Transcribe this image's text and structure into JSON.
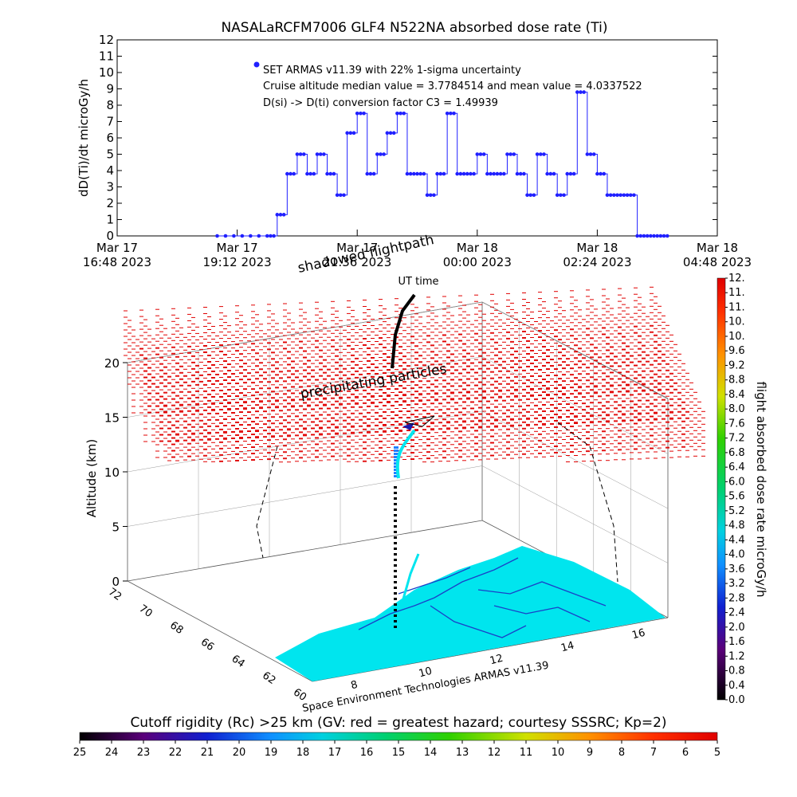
{
  "title": "NASALaRCFM7006  GLF4 N522NA absorbed dose rate (Ti)",
  "top_chart": {
    "ylabel": "dD(Ti)/dt microGy/h",
    "xlabel": "UT time",
    "y_ticks": [
      "0",
      "1",
      "2",
      "3",
      "4",
      "5",
      "6",
      "7",
      "8",
      "9",
      "10",
      "11",
      "12"
    ],
    "x_ticks": [
      {
        "line1": "Mar 17",
        "line2": "16:48 2023"
      },
      {
        "line1": "Mar 17",
        "line2": "19:12 2023"
      },
      {
        "line1": "Mar 17",
        "line2": "21:36 2023"
      },
      {
        "line1": "Mar 18",
        "line2": "00:00 2023"
      },
      {
        "line1": "Mar 18",
        "line2": "02:24 2023"
      },
      {
        "line1": "Mar 18",
        "line2": "04:48 2023"
      }
    ],
    "legend": [
      "SET ARMAS v11.39 with 22% 1-sigma uncertainty",
      "Cruise altitude median value = 3.7784514 and mean value = 4.0337522",
      "D(si) -> D(ti) conversion factor C3 = 1.49939"
    ]
  },
  "chart_data": [
    {
      "type": "line",
      "title": "NASALaRCFM7006  GLF4 N522NA absorbed dose rate (Ti)",
      "xlabel": "UT time",
      "ylabel": "dD(Ti)/dt microGy/h",
      "ylim": [
        0,
        12
      ],
      "x_unit": "hours since Mar 17 16:48 2023",
      "xlim": [
        0,
        12
      ],
      "series": [
        {
          "name": "SET ARMAS v11.39",
          "x": [
            2.0,
            2.5,
            3.0,
            3.2,
            3.4,
            3.6,
            3.8,
            4.0,
            4.2,
            4.4,
            4.6,
            4.8,
            5.0,
            5.2,
            5.4,
            5.6,
            5.8,
            6.0,
            6.2,
            6.4,
            6.6,
            6.8,
            7.0,
            7.2,
            7.4,
            7.6,
            7.8,
            8.0,
            8.2,
            8.4,
            8.6,
            8.8,
            9.0,
            9.2,
            9.4,
            9.6,
            9.8,
            10.0,
            10.2,
            10.4,
            10.6,
            10.8,
            11.0
          ],
          "values": [
            0,
            0,
            0,
            1.3,
            3.8,
            5.0,
            3.8,
            5.0,
            3.8,
            2.5,
            6.3,
            7.5,
            3.8,
            5.0,
            6.3,
            7.5,
            3.8,
            3.8,
            2.5,
            3.8,
            7.5,
            3.8,
            3.8,
            5.0,
            3.8,
            3.8,
            5.0,
            3.8,
            2.5,
            5.0,
            3.8,
            2.5,
            3.8,
            8.8,
            5.0,
            3.8,
            2.5,
            2.5,
            2.5,
            0,
            0,
            0,
            0
          ]
        }
      ]
    },
    {
      "type": "scatter",
      "title": "",
      "ylabel": "Altitude (km)",
      "zlim": [
        0,
        20
      ],
      "z_ticks": [
        "0",
        "5",
        "10",
        "15",
        "20"
      ],
      "lat_ticks": [
        "60",
        "62",
        "64",
        "66",
        "68",
        "70",
        "72"
      ],
      "lon_ticks": [
        "8",
        "10",
        "12",
        "14",
        "16"
      ],
      "annotations": [
        "shadowed flightpath",
        "precipitating particles",
        "Space Environment Technologies ARMAS v11.39"
      ],
      "colorbar": {
        "label": "flight absorbed dose rate microGy/h",
        "ticks": [
          "0.0",
          "0.4",
          "0.8",
          "1.2",
          "1.6",
          "2.0",
          "2.4",
          "2.8",
          "3.2",
          "3.6",
          "4.0",
          "4.4",
          "4.8",
          "5.2",
          "5.6",
          "6.0",
          "6.4",
          "6.8",
          "7.2",
          "7.6",
          "8.0",
          "8.4",
          "8.8",
          "9.2",
          "9.6",
          "10.",
          "10.",
          "11.",
          "11.",
          "12."
        ]
      }
    }
  ],
  "bottom_bar": {
    "label": "Cutoff rigidity (Rc) >25 km (GV: red = greatest hazard; courtesy SSSRC; Kp=2)",
    "ticks": [
      "25",
      "24",
      "23",
      "22",
      "21",
      "20",
      "19",
      "18",
      "17",
      "16",
      "15",
      "14",
      "13",
      "12",
      "11",
      "10",
      "9",
      "8",
      "7",
      "6",
      "5"
    ]
  },
  "colors": {
    "series": "#2020ff",
    "accent": "#00e5ee",
    "hazard": "#e00000"
  }
}
